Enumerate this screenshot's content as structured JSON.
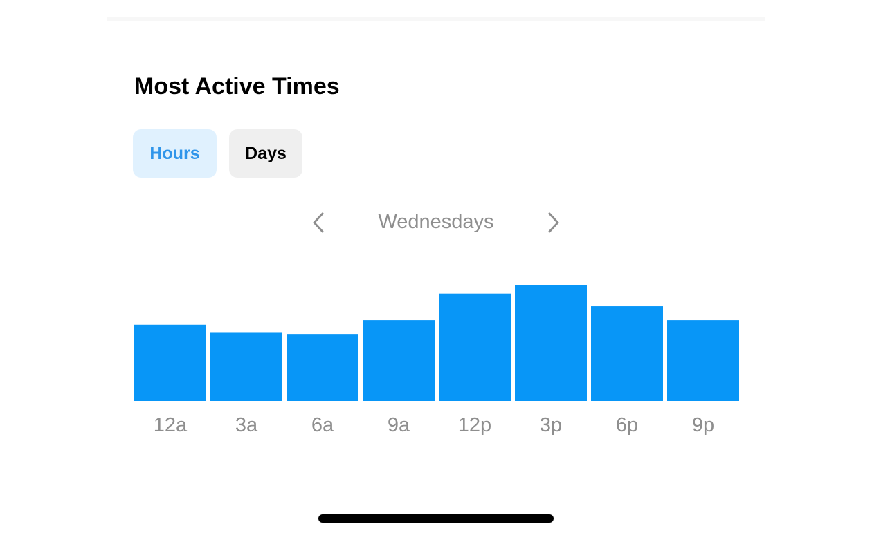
{
  "section": {
    "title": "Most Active Times"
  },
  "toggle": {
    "hours_label": "Hours",
    "days_label": "Days",
    "selected": "Hours"
  },
  "day_nav": {
    "prev_icon": "chevron-left-icon",
    "next_icon": "chevron-right-icon",
    "label": "Wednesdays"
  },
  "colors": {
    "bar": "#0896f7",
    "tick_label": "#8e8e8e",
    "selected_toggle_bg": "#e0f1fe",
    "selected_toggle_text": "#2f95ea"
  },
  "chart_data": {
    "type": "bar",
    "categories": [
      "12a",
      "3a",
      "6a",
      "9a",
      "12p",
      "3p",
      "6p",
      "9p"
    ],
    "values": [
      66,
      59,
      58,
      70,
      93,
      100,
      82,
      70
    ],
    "title": "",
    "xlabel": "",
    "ylabel": "",
    "ylim": [
      0,
      100
    ],
    "grid": false
  }
}
